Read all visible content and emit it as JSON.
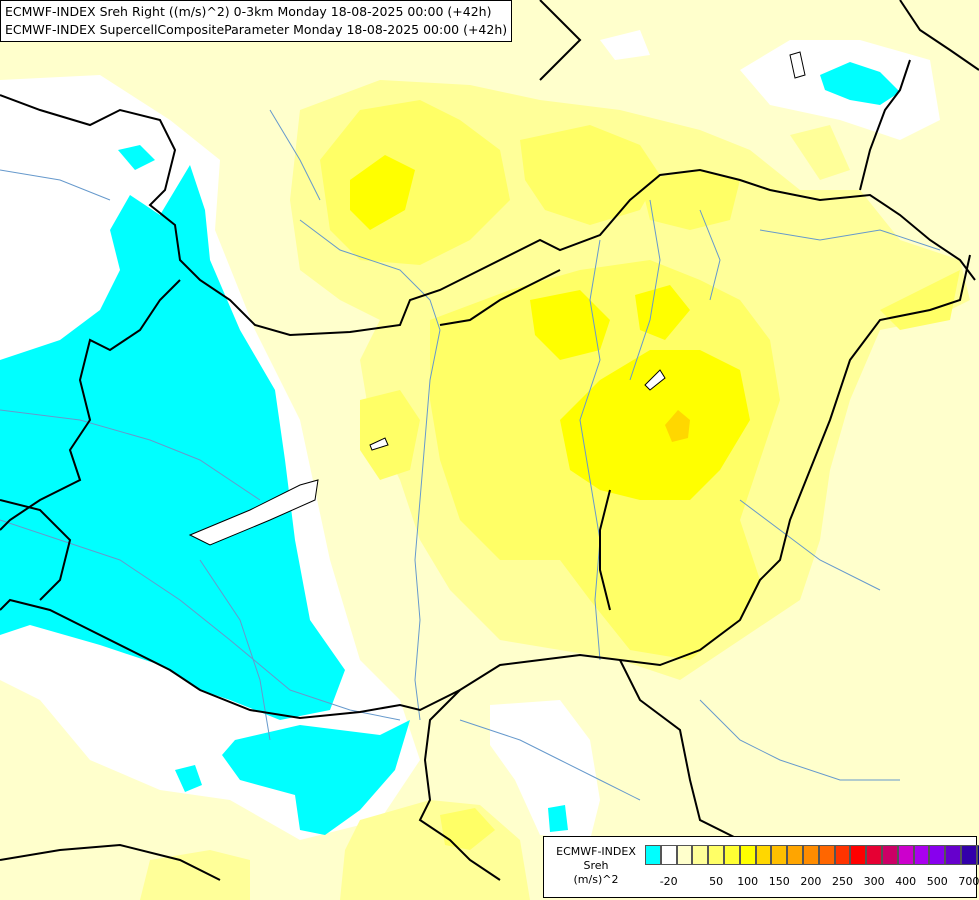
{
  "header": {
    "line1": "ECMWF-INDEX Sreh Right ((m/s)^2) 0-3km Monday 18-08-2025 00:00 (+42h)",
    "line2": "ECMWF-INDEX SupercellCompositeParameter Monday 18-08-2025 00:00 (+42h)"
  },
  "legend": {
    "title_line1": "ECMWF-INDEX",
    "title_line2": "Sreh",
    "title_line3": "(m/s)^2",
    "colors": [
      "#00ffff",
      "#ffffff",
      "#ffffcc",
      "#ffff99",
      "#ffff66",
      "#ffff33",
      "#ffff00",
      "#ffd700",
      "#ffbf00",
      "#ffa500",
      "#ff8c00",
      "#ff6600",
      "#ff3300",
      "#ff0000",
      "#e60033",
      "#cc0066",
      "#cc00cc",
      "#aa00ee",
      "#8800ee",
      "#6600cc",
      "#3300aa",
      "#000080"
    ],
    "labels": [
      "-20",
      "50",
      "100",
      "150",
      "200",
      "250",
      "300",
      "400",
      "500",
      "700"
    ]
  },
  "colors": {
    "background": "#ffffcc",
    "cyan_area": "#00ffff",
    "white_area": "#ffffff",
    "light_yellow": "#ffff99",
    "mid_yellow": "#ffff66",
    "yellow": "#ffff00",
    "gold": "#ffd700",
    "rivers": "#6699cc",
    "borders": "#000000"
  }
}
